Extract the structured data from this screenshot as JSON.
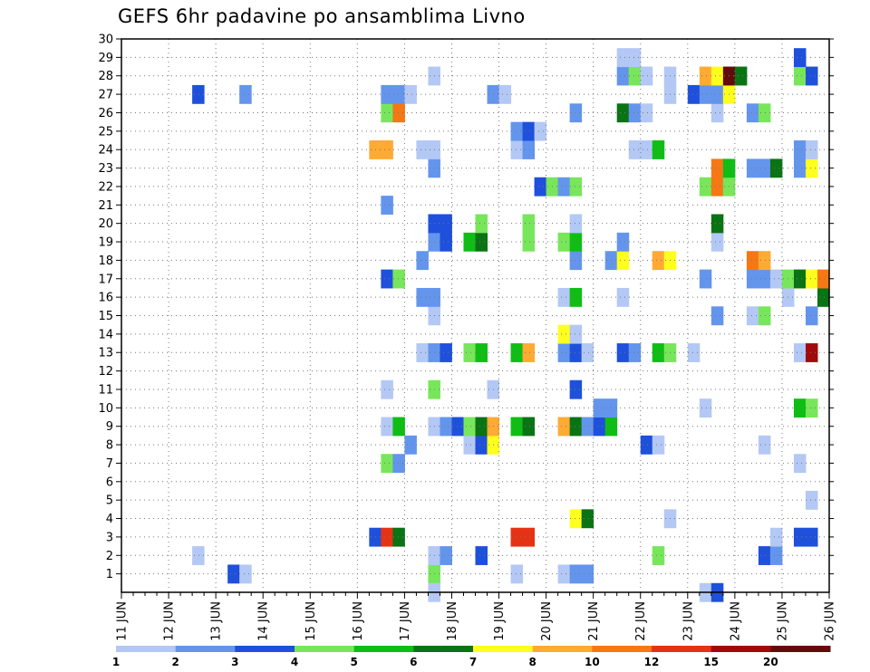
{
  "title": "GEFS 6hr padavine po ansamblima Livno",
  "chart_data": {
    "type": "heatmap",
    "title": "GEFS 6hr padavine po ansamblima Livno",
    "y_ticks": [
      1,
      2,
      3,
      4,
      5,
      6,
      7,
      8,
      9,
      10,
      11,
      12,
      13,
      14,
      15,
      16,
      17,
      18,
      19,
      20,
      21,
      22,
      23,
      24,
      25,
      26,
      27,
      28,
      29,
      30
    ],
    "x_ticks": [
      "11 JUN",
      "12 JUN",
      "13 JUN",
      "14 JUN",
      "15 JUN",
      "16 JUN",
      "17 JUN",
      "18 JUN",
      "19 JUN",
      "20 JUN",
      "21 JUN",
      "22 JUN",
      "23 JUN",
      "24 JUN",
      "25 JUN",
      "26 JUN"
    ],
    "x_range_days": [
      11,
      26
    ],
    "y_range": [
      0,
      30
    ],
    "grid": true,
    "legend": {
      "position": "bottom",
      "thresholds": [
        "1",
        "2",
        "3",
        "4",
        "5",
        "6",
        "7",
        "8",
        "10",
        "12",
        "15",
        "20"
      ],
      "colors": [
        "#b4c8f5",
        "#6495ed",
        "#1e50dc",
        "#78e65a",
        "#0fbe14",
        "#0a7314",
        "#ffff1e",
        "#ffaa32",
        "#f57814",
        "#e63214",
        "#a00a0a",
        "#640a0a"
      ]
    },
    "cells_note": "each cell: [start_day_of_june, member_row, color_index]",
    "cells": [
      [
        17.5,
        1,
        3
      ],
      [
        20.25,
        1,
        0
      ],
      [
        20.5,
        1,
        1
      ],
      [
        20.75,
        1,
        1
      ],
      [
        19.25,
        1,
        0
      ],
      [
        13.25,
        1,
        2
      ],
      [
        13.5,
        1,
        0
      ],
      [
        17.5,
        0,
        0
      ],
      [
        23.25,
        0,
        0
      ],
      [
        23.5,
        0,
        2
      ],
      [
        12.5,
        2,
        0
      ],
      [
        17.5,
        2,
        0
      ],
      [
        17.75,
        2,
        1
      ],
      [
        18.5,
        2,
        2
      ],
      [
        22.25,
        2,
        3
      ],
      [
        24.5,
        2,
        2
      ],
      [
        24.75,
        2,
        1
      ],
      [
        16.25,
        3,
        2
      ],
      [
        16.5,
        3,
        9
      ],
      [
        16.75,
        3,
        5
      ],
      [
        19.25,
        3,
        9
      ],
      [
        19.5,
        3,
        9
      ],
      [
        24.75,
        3,
        0
      ],
      [
        25.25,
        3,
        2
      ],
      [
        25.5,
        3,
        2
      ],
      [
        20.5,
        4,
        6
      ],
      [
        20.75,
        4,
        5
      ],
      [
        22.5,
        4,
        0
      ],
      [
        25.5,
        5,
        0
      ],
      [
        16.5,
        7,
        3
      ],
      [
        16.75,
        7,
        1
      ],
      [
        25.25,
        7,
        0
      ],
      [
        17,
        8,
        1
      ],
      [
        18.25,
        8,
        0
      ],
      [
        18.5,
        8,
        2
      ],
      [
        18.75,
        8,
        6
      ],
      [
        22,
        8,
        2
      ],
      [
        22.25,
        8,
        0
      ],
      [
        24.5,
        8,
        0
      ],
      [
        16.5,
        9,
        0
      ],
      [
        16.75,
        9,
        4
      ],
      [
        17.5,
        9,
        0
      ],
      [
        17.75,
        9,
        1
      ],
      [
        18,
        9,
        2
      ],
      [
        18.25,
        9,
        3
      ],
      [
        18.5,
        9,
        5
      ],
      [
        18.75,
        9,
        7
      ],
      [
        19.25,
        9,
        4
      ],
      [
        19.5,
        9,
        5
      ],
      [
        20.25,
        9,
        7
      ],
      [
        20.5,
        9,
        5
      ],
      [
        20.75,
        9,
        1
      ],
      [
        21,
        9,
        2
      ],
      [
        21.25,
        9,
        4
      ],
      [
        21,
        10,
        1
      ],
      [
        21.25,
        10,
        1
      ],
      [
        23.25,
        10,
        0
      ],
      [
        25.25,
        10,
        4
      ],
      [
        25.5,
        10,
        3
      ],
      [
        16.5,
        11,
        0
      ],
      [
        17.5,
        11,
        3
      ],
      [
        18.75,
        11,
        0
      ],
      [
        20.5,
        11,
        2
      ],
      [
        17.25,
        13,
        0
      ],
      [
        17.5,
        13,
        1
      ],
      [
        17.75,
        13,
        2
      ],
      [
        18.25,
        13,
        3
      ],
      [
        18.5,
        13,
        4
      ],
      [
        19.25,
        13,
        4
      ],
      [
        19.5,
        13,
        7
      ],
      [
        20.25,
        13,
        1
      ],
      [
        20.5,
        13,
        2
      ],
      [
        20.75,
        13,
        0
      ],
      [
        21.5,
        13,
        2
      ],
      [
        21.75,
        13,
        1
      ],
      [
        22.25,
        13,
        4
      ],
      [
        22.5,
        13,
        3
      ],
      [
        23,
        13,
        0
      ],
      [
        25.25,
        13,
        0
      ],
      [
        25.5,
        13,
        10
      ],
      [
        20.25,
        14,
        6
      ],
      [
        20.5,
        14,
        0
      ],
      [
        17.5,
        15,
        0
      ],
      [
        23.5,
        15,
        1
      ],
      [
        24.25,
        15,
        0
      ],
      [
        24.5,
        15,
        3
      ],
      [
        25.5,
        15,
        1
      ],
      [
        17.25,
        16,
        1
      ],
      [
        17.5,
        16,
        1
      ],
      [
        20.25,
        16,
        0
      ],
      [
        20.5,
        16,
        4
      ],
      [
        21.5,
        16,
        0
      ],
      [
        25,
        16,
        0
      ],
      [
        25.75,
        16,
        5
      ],
      [
        16.5,
        17,
        2
      ],
      [
        16.75,
        17,
        3
      ],
      [
        23.25,
        17,
        1
      ],
      [
        24.25,
        17,
        1
      ],
      [
        24.5,
        17,
        1
      ],
      [
        24.75,
        17,
        0
      ],
      [
        25,
        17,
        3
      ],
      [
        25.25,
        17,
        5
      ],
      [
        25.5,
        17,
        6
      ],
      [
        25.75,
        17,
        8
      ],
      [
        17.25,
        18,
        1
      ],
      [
        20.5,
        18,
        1
      ],
      [
        21.25,
        18,
        1
      ],
      [
        21.5,
        18,
        6
      ],
      [
        22.25,
        18,
        7
      ],
      [
        22.5,
        18,
        6
      ],
      [
        24.25,
        18,
        8
      ],
      [
        24.5,
        18,
        7
      ],
      [
        17.5,
        19,
        1
      ],
      [
        17.75,
        19,
        2
      ],
      [
        18.25,
        19,
        4
      ],
      [
        18.5,
        19,
        5
      ],
      [
        19.5,
        19,
        3
      ],
      [
        20.25,
        19,
        3
      ],
      [
        20.5,
        19,
        4
      ],
      [
        21.5,
        19,
        1
      ],
      [
        23.5,
        19,
        0
      ],
      [
        17.5,
        20,
        2
      ],
      [
        17.75,
        20,
        2
      ],
      [
        18.5,
        20,
        3
      ],
      [
        19.5,
        20,
        3
      ],
      [
        20.5,
        20,
        0
      ],
      [
        23.5,
        20,
        5
      ],
      [
        16.5,
        21,
        1
      ],
      [
        19.75,
        22,
        2
      ],
      [
        20,
        22,
        3
      ],
      [
        20.25,
        22,
        1
      ],
      [
        20.5,
        22,
        3
      ],
      [
        23.25,
        22,
        3
      ],
      [
        23.5,
        22,
        8
      ],
      [
        23.75,
        22,
        3
      ],
      [
        17.5,
        23,
        1
      ],
      [
        23.5,
        23,
        8
      ],
      [
        23.75,
        23,
        4
      ],
      [
        24.25,
        23,
        1
      ],
      [
        24.5,
        23,
        1
      ],
      [
        24.75,
        23,
        5
      ],
      [
        25.25,
        23,
        1
      ],
      [
        25.5,
        23,
        6
      ],
      [
        16.25,
        24,
        7
      ],
      [
        16.5,
        24,
        7
      ],
      [
        17.25,
        24,
        0
      ],
      [
        17.5,
        24,
        0
      ],
      [
        19.25,
        24,
        0
      ],
      [
        19.5,
        24,
        1
      ],
      [
        21.75,
        24,
        0
      ],
      [
        22,
        24,
        0
      ],
      [
        22.25,
        24,
        4
      ],
      [
        25.25,
        24,
        1
      ],
      [
        25.5,
        24,
        0
      ],
      [
        19.25,
        25,
        1
      ],
      [
        19.5,
        25,
        2
      ],
      [
        19.75,
        25,
        0
      ],
      [
        16.5,
        26,
        3
      ],
      [
        16.75,
        26,
        8
      ],
      [
        20.5,
        26,
        1
      ],
      [
        21.5,
        26,
        5
      ],
      [
        21.75,
        26,
        1
      ],
      [
        22,
        26,
        0
      ],
      [
        23.5,
        26,
        0
      ],
      [
        24.25,
        26,
        1
      ],
      [
        24.5,
        26,
        3
      ],
      [
        12.5,
        27,
        2
      ],
      [
        13.5,
        27,
        1
      ],
      [
        16.5,
        27,
        1
      ],
      [
        16.75,
        27,
        1
      ],
      [
        17,
        27,
        0
      ],
      [
        18.75,
        27,
        1
      ],
      [
        19,
        27,
        0
      ],
      [
        22.5,
        27,
        0
      ],
      [
        23,
        27,
        2
      ],
      [
        23.25,
        27,
        1
      ],
      [
        23.5,
        27,
        1
      ],
      [
        23.75,
        27,
        6
      ],
      [
        17.5,
        28,
        0
      ],
      [
        21.5,
        28,
        1
      ],
      [
        21.75,
        28,
        3
      ],
      [
        22,
        28,
        0
      ],
      [
        22.5,
        28,
        0
      ],
      [
        23.25,
        28,
        7
      ],
      [
        23.5,
        28,
        6
      ],
      [
        23.75,
        28,
        11
      ],
      [
        24,
        28,
        5
      ],
      [
        25.25,
        28,
        3
      ],
      [
        25.5,
        28,
        2
      ],
      [
        21.5,
        29,
        0
      ],
      [
        21.75,
        29,
        0
      ],
      [
        25.25,
        29,
        2
      ]
    ]
  }
}
